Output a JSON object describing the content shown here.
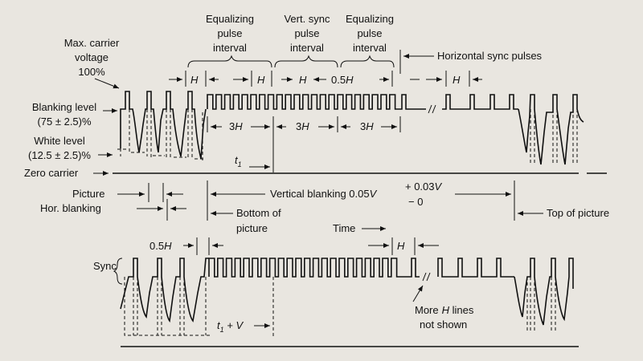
{
  "labels": {
    "max_carrier_1": "Max. carrier",
    "max_carrier_2": "voltage",
    "max_carrier_3": "100%",
    "blanking_1": "Blanking level",
    "blanking_2": "(75 ± 2.5)%",
    "white_1": "White level",
    "white_2": "(12.5 ± 2.5)%",
    "zero_carrier": "Zero carrier",
    "picture": "Picture",
    "hor_blanking": "Hor. blanking",
    "sync": "Sync",
    "eq1_1": "Equalizing",
    "eq1_2": "pulse",
    "eq1_3": "interval",
    "vs_1": "Vert. sync",
    "vs_2": "pulse",
    "vs_3": "interval",
    "eq2_1": "Equalizing",
    "eq2_2": "pulse",
    "eq2_3": "interval",
    "hsync": "Horizontal sync pulses",
    "h": "H",
    "half_h": "0.5",
    "three_h": "3",
    "t1": "t",
    "t1_sub": "1",
    "t1v": "t",
    "t1v_sub": "1",
    "t1v_tail": " + V",
    "vblank": "Vertical blanking 0.05",
    "vblank_v": "V",
    "tol_plus": "+ 0.03",
    "tol_plus_v": "V",
    "tol_minus": "− 0",
    "bottom_1": "Bottom of",
    "bottom_2": "picture",
    "top_pic": "Top of picture",
    "time": "Time",
    "more_1": "More",
    "more_2": " lines",
    "more_3": "not shown"
  }
}
